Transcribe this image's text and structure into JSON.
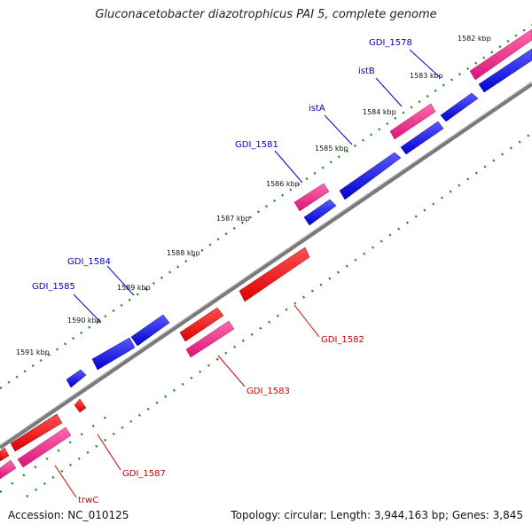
{
  "title": "Gluconacetobacter diazotrophicus PAI 5, complete genome",
  "footer": {
    "accession": "Accession: NC_010125",
    "summary": "Topology: circular; Length: 3,944,163 bp; Genes: 3,845"
  },
  "colors": {
    "backbone": "#808080",
    "forward_cds": "#0000dd",
    "forward_pink": "#e8197d",
    "reverse_cds": "#ee0000",
    "reverse_pink": "#e8197d",
    "tick_marks": "#1a8a1a",
    "forward_label": "#0000cc",
    "reverse_label": "#cc0000"
  },
  "scale_labels": [
    "1582 kbp",
    "1583 kbp",
    "1584 kbp",
    "1585 kbp",
    "1586 kbp",
    "1587 kbp",
    "1588 kbp",
    "1589 kbp",
    "1590 kbp",
    "1591 kbp"
  ],
  "forward_gene_labels": [
    "GDI_1578",
    "istB",
    "istA",
    "GDI_1581",
    "GDI_1584",
    "GDI_1585"
  ],
  "reverse_gene_labels": [
    "GDI_1582",
    "GDI_1583",
    "GDI_1587",
    "trwC"
  ]
}
